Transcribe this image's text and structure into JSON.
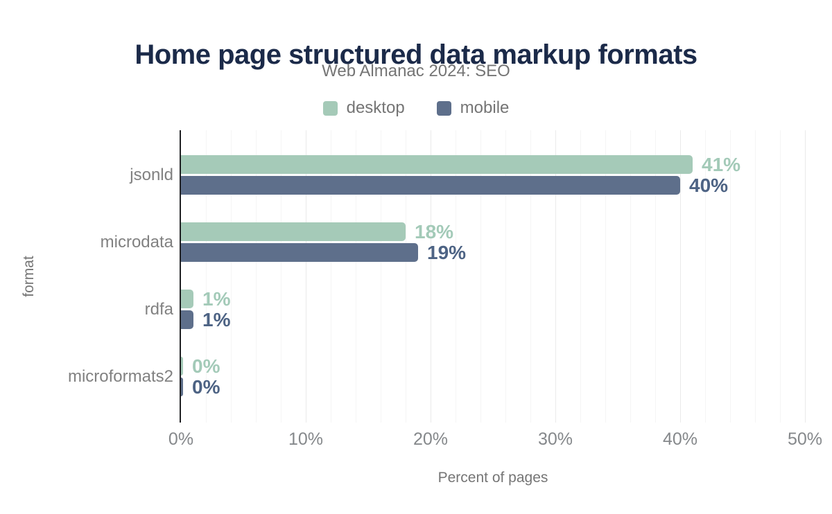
{
  "header": {
    "title": "Home page structured data markup formats",
    "subtitle": "Web Almanac 2024: SEO"
  },
  "legend": [
    {
      "label": "desktop",
      "color": "#a5cab8"
    },
    {
      "label": "mobile",
      "color": "#5e6f8b"
    }
  ],
  "colors": {
    "title_text": "#1b2a49",
    "muted_text": "#757575",
    "category_text": "#818181",
    "tick_text": "#85888b",
    "axis_line": "#202124",
    "gridline_minor": "#f5f5f5",
    "gridline_major": "#eaeaea",
    "desktop_bar": "#a5cab8",
    "desktop_value": "#a3cab8",
    "mobile_bar": "#5e6f8b",
    "mobile_value": "#4d6384"
  },
  "chart_data": {
    "type": "bar",
    "orientation": "horizontal",
    "title": "Home page structured data markup formats",
    "subtitle": "Web Almanac 2024: SEO",
    "categories": [
      "jsonld",
      "microdata",
      "rdfa",
      "microformats2"
    ],
    "series": [
      {
        "name": "desktop",
        "values": [
          41,
          18,
          1,
          0
        ],
        "labels": [
          "41%",
          "18%",
          "1%",
          "0%"
        ],
        "color": "#a5cab8",
        "value_color": "#a3cab8"
      },
      {
        "name": "mobile",
        "values": [
          40,
          19,
          1,
          0
        ],
        "labels": [
          "40%",
          "19%",
          "1%",
          "0%"
        ],
        "color": "#5e6f8b",
        "value_color": "#4d6384"
      }
    ],
    "x_axis": {
      "title": "Percent of pages",
      "min": 0,
      "max": 50,
      "ticks": [
        "0%",
        "10%",
        "20%",
        "30%",
        "40%",
        "50%"
      ],
      "minor_grid_step": 2,
      "major_grid_step": 10
    },
    "y_axis": {
      "title": "format"
    },
    "legend_position": "top",
    "grid": true,
    "value_labels": "outside-end"
  }
}
